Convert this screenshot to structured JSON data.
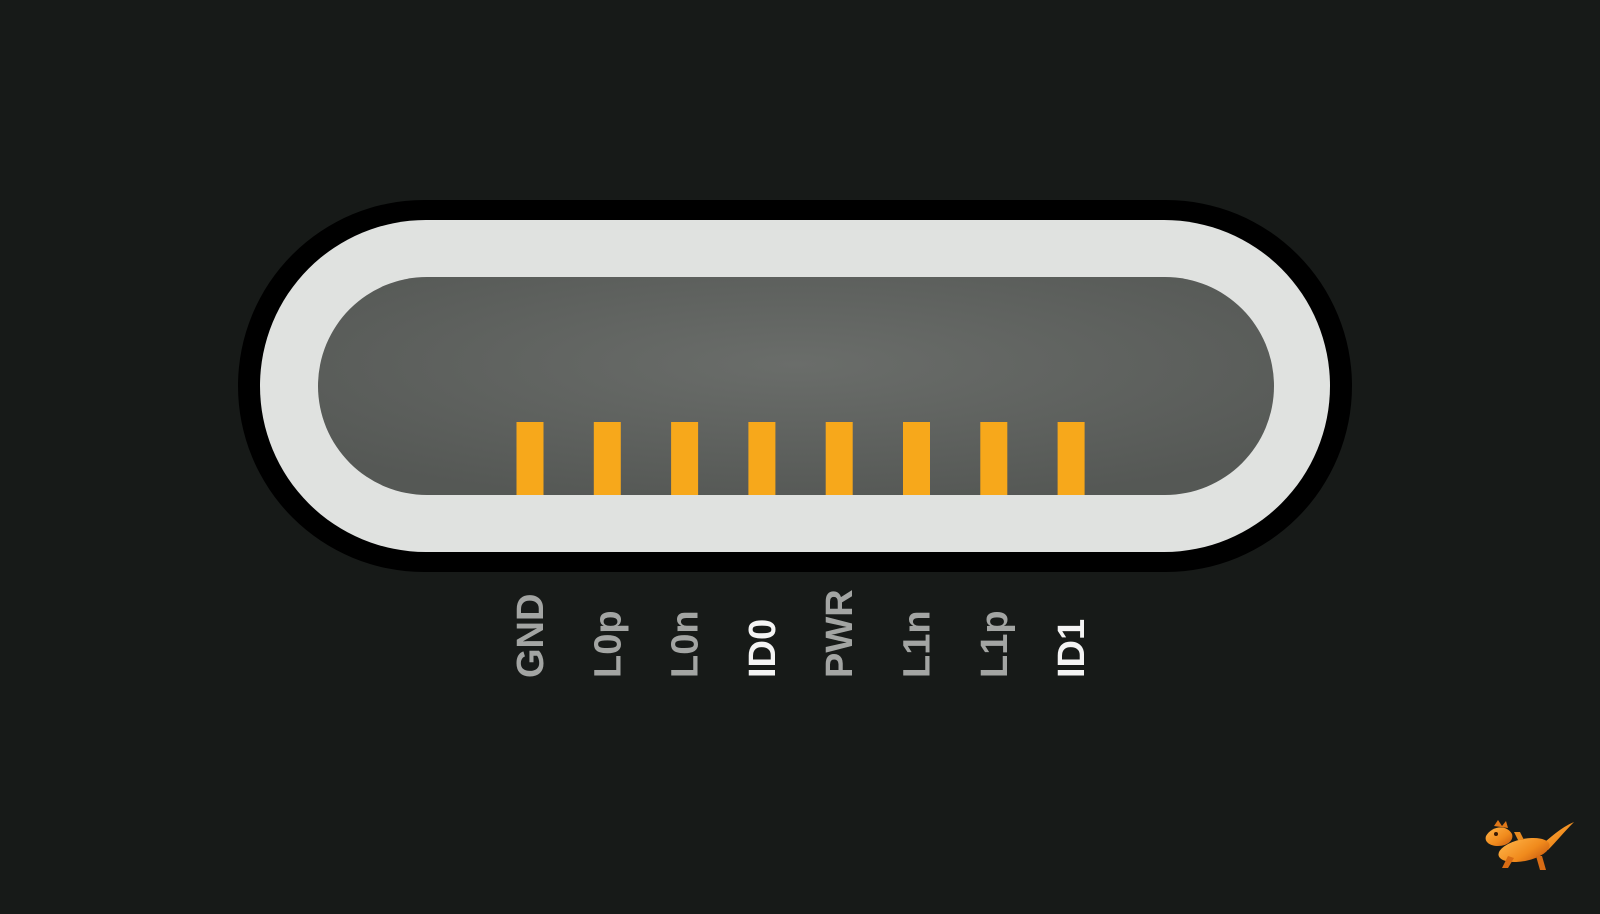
{
  "colors": {
    "background": "#171a18",
    "outer_border": "#000000",
    "shell": "#e0e2e0",
    "cavity": "#5f625f",
    "pin": "#f7a81b",
    "label_muted": "#a3a5a3",
    "label_highlight": "#f4f4f4"
  },
  "pins": [
    {
      "label": "GND",
      "highlight": false
    },
    {
      "label": "L0p",
      "highlight": false
    },
    {
      "label": "L0n",
      "highlight": false
    },
    {
      "label": "ID0",
      "highlight": true
    },
    {
      "label": "PWR",
      "highlight": false
    },
    {
      "label": "L1n",
      "highlight": false
    },
    {
      "label": "L1p",
      "highlight": false
    },
    {
      "label": "ID1",
      "highlight": true
    }
  ],
  "logo": {
    "icon": "lizard-icon"
  }
}
